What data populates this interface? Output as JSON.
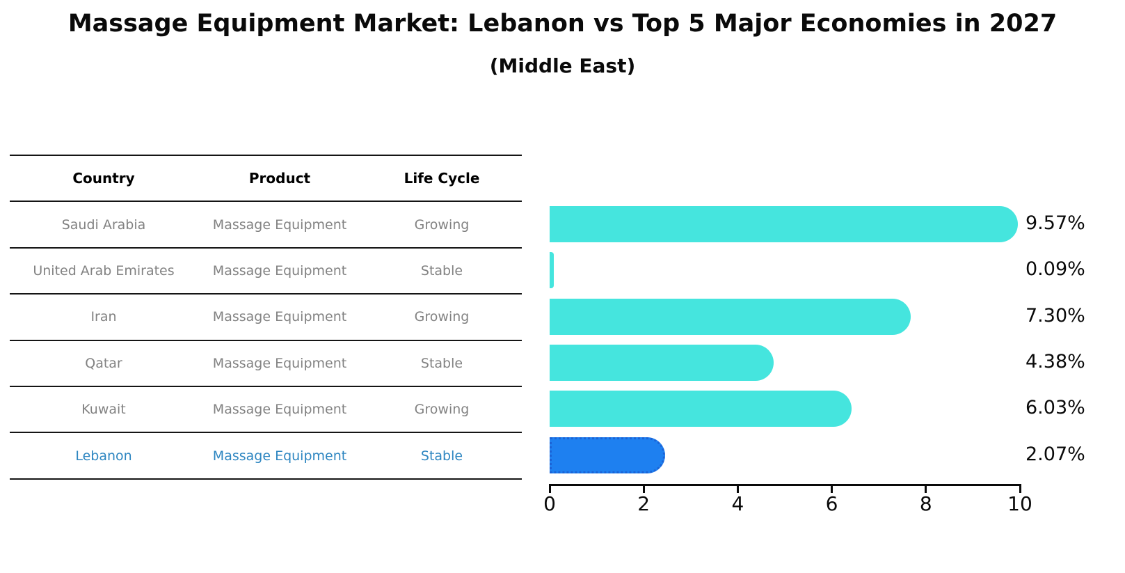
{
  "title": "Massage Equipment Market: Lebanon vs Top 5 Major Economies in 2027",
  "subtitle": "(Middle East)",
  "table": {
    "columns": [
      "Country",
      "Product",
      "Life Cycle"
    ],
    "rows": [
      {
        "country": "Saudi Arabia",
        "product": "Massage Equipment",
        "life_cycle": "Growing",
        "highlight": false
      },
      {
        "country": "United Arab Emirates",
        "product": "Massage Equipment",
        "life_cycle": "Stable",
        "highlight": false
      },
      {
        "country": "Iran",
        "product": "Massage Equipment",
        "life_cycle": "Growing",
        "highlight": false
      },
      {
        "country": "Qatar",
        "product": "Massage Equipment",
        "life_cycle": "Stable",
        "highlight": false
      },
      {
        "country": "Kuwait",
        "product": "Massage Equipment",
        "life_cycle": "Growing",
        "highlight": false
      },
      {
        "country": "Lebanon",
        "product": "Massage Equipment",
        "life_cycle": "Stable",
        "highlight": true
      }
    ]
  },
  "chart_data": {
    "type": "bar",
    "orientation": "horizontal",
    "title": "Massage Equipment Market: Lebanon vs Top 5 Major Economies in 2027",
    "subtitle": "(Middle East)",
    "categories": [
      "Saudi Arabia",
      "United Arab Emirates",
      "Iran",
      "Qatar",
      "Kuwait",
      "Lebanon"
    ],
    "values": [
      9.57,
      0.09,
      7.3,
      4.38,
      6.03,
      2.07
    ],
    "value_labels": [
      "9.57%",
      "0.09%",
      "7.30%",
      "4.38%",
      "6.03%",
      "2.07%"
    ],
    "xlim": [
      0,
      10
    ],
    "xticks": [
      0,
      2,
      4,
      6,
      8,
      10
    ],
    "grid": false,
    "legend": "none",
    "bar_color": "#45E5DE",
    "highlight_color": "#1E80F0",
    "highlight_border_color": "#1b63d6",
    "highlight_index": 5,
    "text_color": "#0a0a0a",
    "muted_text_color": "#828282",
    "highlight_text_color": "#2E86C1"
  }
}
